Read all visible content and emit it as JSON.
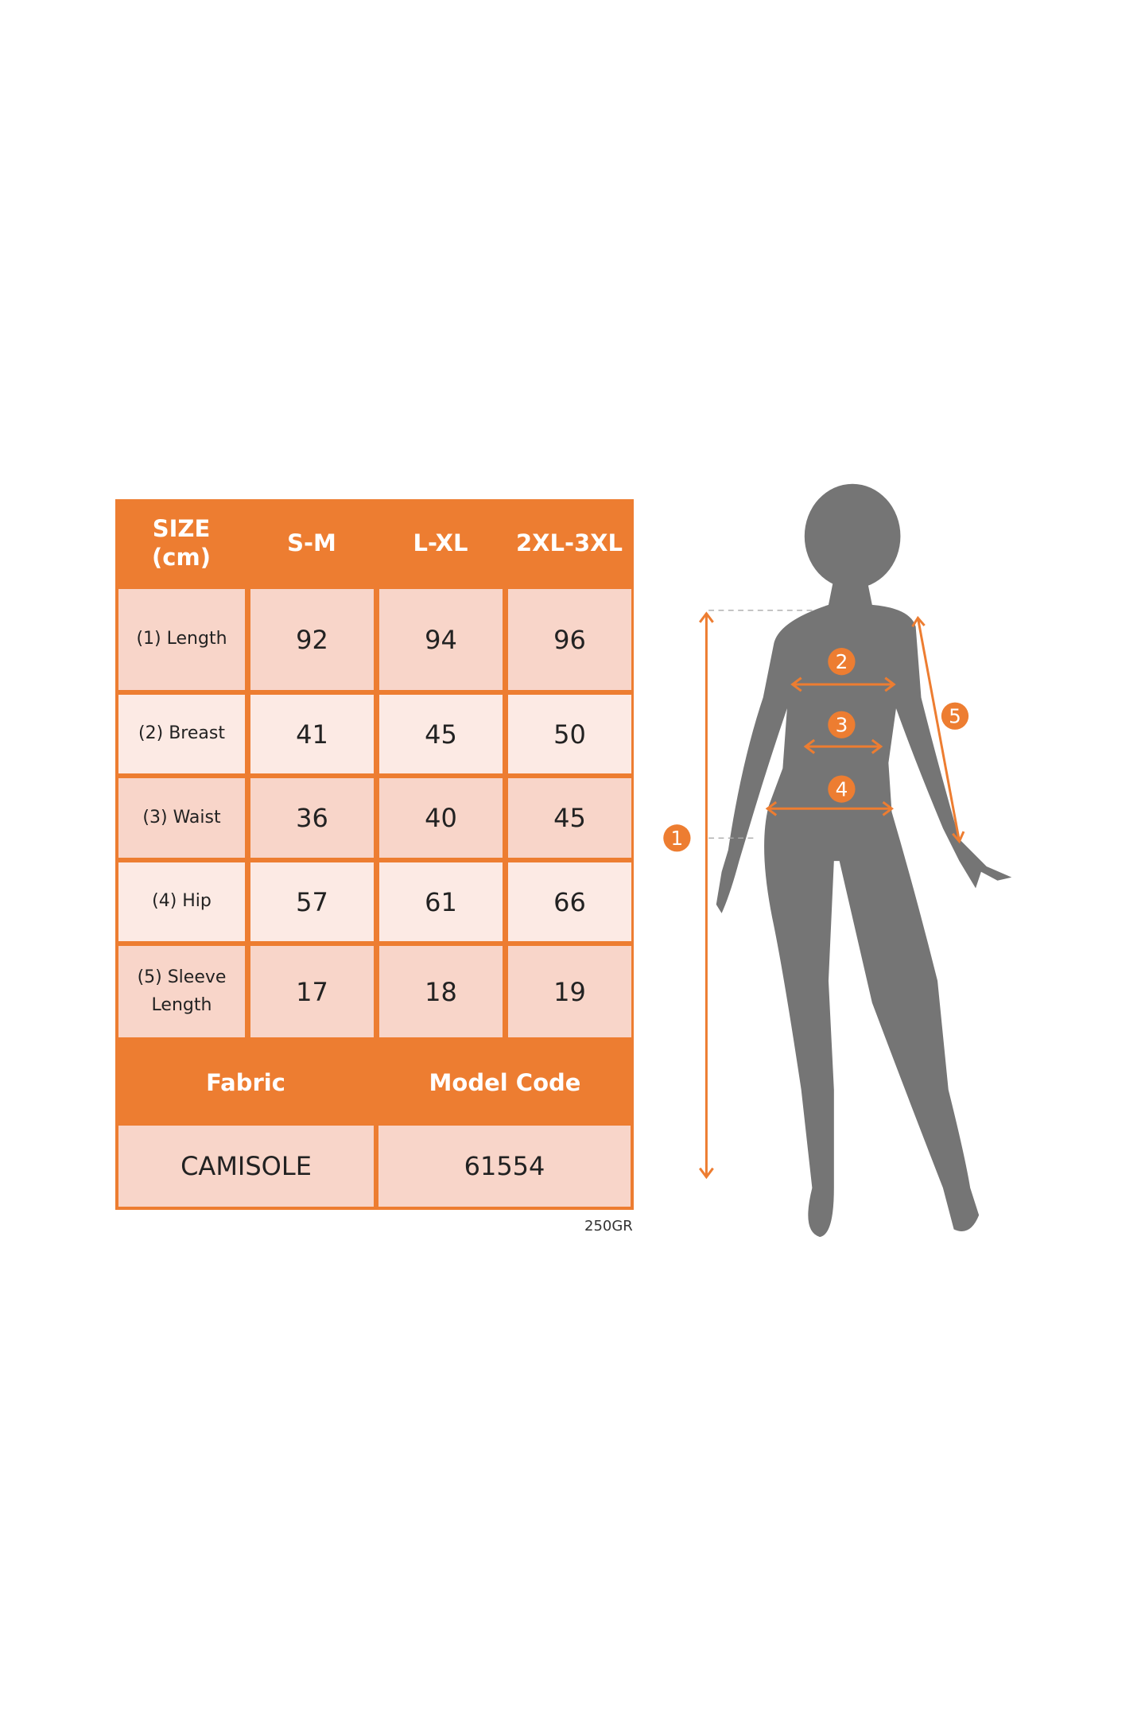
{
  "size_chart": {
    "header": {
      "size_label": "SIZE\n(cm)",
      "sizes": [
        "S-M",
        "L-XL",
        "2XL-3XL"
      ]
    },
    "rows": [
      {
        "label": "(1) Length",
        "values": [
          "92",
          "94",
          "96"
        ]
      },
      {
        "label": "(2) Breast",
        "values": [
          "41",
          "45",
          "50"
        ]
      },
      {
        "label": "(3) Waist",
        "values": [
          "36",
          "40",
          "45"
        ]
      },
      {
        "label": "(4) Hip",
        "values": [
          "57",
          "61",
          "66"
        ]
      },
      {
        "label": "(5) Sleeve Length",
        "values": [
          "17",
          "18",
          "19"
        ]
      }
    ],
    "footer": {
      "fabric_label": "Fabric",
      "model_code_label": "Model Code",
      "fabric_value": "CAMISOLE",
      "model_code_value": "61554"
    },
    "weight": "250GR"
  },
  "figure": {
    "markers": [
      "1",
      "2",
      "3",
      "4",
      "5"
    ],
    "accent_color": "#ED7D31",
    "silhouette_color": "#757575"
  }
}
